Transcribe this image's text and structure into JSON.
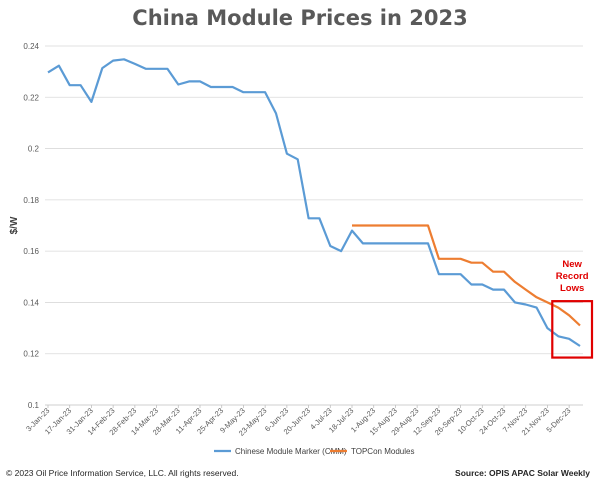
{
  "chart_data": {
    "type": "line",
    "title": "China Module Prices in 2023",
    "ylabel": "$/W",
    "ylim": [
      0.1,
      0.24
    ],
    "yticks": [
      "0.1",
      "0.12",
      "0.14",
      "0.16",
      "0.18",
      "0.2",
      "0.22",
      "0.24"
    ],
    "ytick_values": [
      0.1,
      0.12,
      0.14,
      0.16,
      0.18,
      0.2,
      0.22,
      0.24
    ],
    "categories": [
      "3-Jan-23",
      "10-Jan-23",
      "17-Jan-23",
      "24-Jan-23",
      "31-Jan-23",
      "7-Feb-23",
      "14-Feb-23",
      "21-Feb-23",
      "28-Feb-23",
      "7-Mar-23",
      "14-Mar-23",
      "21-Mar-23",
      "28-Mar-23",
      "4-Apr-23",
      "11-Apr-23",
      "18-Apr-23",
      "25-Apr-23",
      "2-May-23",
      "9-May-23",
      "16-May-23",
      "23-May-23",
      "30-May-23",
      "6-Jun-23",
      "13-Jun-23",
      "20-Jun-23",
      "27-Jun-23",
      "4-Jul-23",
      "11-Jul-23",
      "18-Jul-23",
      "25-Jul-23",
      "1-Aug-23",
      "8-Aug-23",
      "15-Aug-23",
      "22-Aug-23",
      "29-Aug-23",
      "5-Sep-23",
      "12-Sep-23",
      "19-Sep-23",
      "26-Sep-23",
      "3-Oct-23",
      "10-Oct-23",
      "17-Oct-23",
      "24-Oct-23",
      "31-Oct-23",
      "7-Nov-23",
      "14-Nov-23",
      "21-Nov-23",
      "28-Nov-23",
      "5-Dec-23",
      "12-Dec-23"
    ],
    "tick_labels": [
      "3-Jan-23",
      "17-Jan-23",
      "31-Jan-23",
      "14-Feb-23",
      "28-Feb-23",
      "14-Mar-23",
      "28-Mar-23",
      "11-Apr-23",
      "25-Apr-23",
      "9-May-23",
      "23-May-23",
      "6-Jun-23",
      "20-Jun-23",
      "4-Jul-23",
      "18-Jul-23",
      "1-Aug-23",
      "15-Aug-23",
      "29-Aug-23",
      "12-Sep-23",
      "26-Sep-23",
      "10-Oct-23",
      "24-Oct-23",
      "7-Nov-23",
      "21-Nov-23",
      "5-Dec-23"
    ],
    "series": [
      {
        "name": "Chinese Module Marker (CMM)",
        "color": "#5b9bd5",
        "values": [
          0.2297,
          0.2323,
          0.2247,
          0.2247,
          0.2182,
          0.2314,
          0.2343,
          0.2348,
          0.233,
          0.2311,
          0.2311,
          0.2311,
          0.225,
          0.2262,
          0.2262,
          0.224,
          0.224,
          0.224,
          0.222,
          0.222,
          0.222,
          0.2137,
          0.198,
          0.1958,
          0.1728,
          0.1728,
          0.162,
          0.16,
          0.168,
          0.163,
          0.163,
          0.163,
          0.163,
          0.163,
          0.163,
          0.163,
          0.151,
          0.151,
          0.151,
          0.147,
          0.147,
          0.145,
          0.145,
          0.14,
          0.1392,
          0.138,
          0.13,
          0.1268,
          0.1258,
          0.123
        ]
      },
      {
        "name": "TOPCon Modules",
        "color": "#ed7d31",
        "values": [
          null,
          null,
          null,
          null,
          null,
          null,
          null,
          null,
          null,
          null,
          null,
          null,
          null,
          null,
          null,
          null,
          null,
          null,
          null,
          null,
          null,
          null,
          null,
          null,
          null,
          null,
          null,
          null,
          0.17,
          0.17,
          0.17,
          0.17,
          0.17,
          0.17,
          0.17,
          0.17,
          0.157,
          0.157,
          0.157,
          0.1555,
          0.1555,
          0.152,
          0.152,
          0.148,
          0.145,
          0.142,
          0.14,
          0.138,
          0.135,
          0.131
        ]
      }
    ],
    "annotation": {
      "text": [
        "New",
        "Record",
        "Lows"
      ],
      "color": "#e00000"
    },
    "grid": true,
    "legend_position": "bottom"
  },
  "footer": {
    "copyright": "© 2023  Oil Price Information Service, LLC. All rights reserved.",
    "source": "Source: OPIS APAC Solar Weekly"
  }
}
